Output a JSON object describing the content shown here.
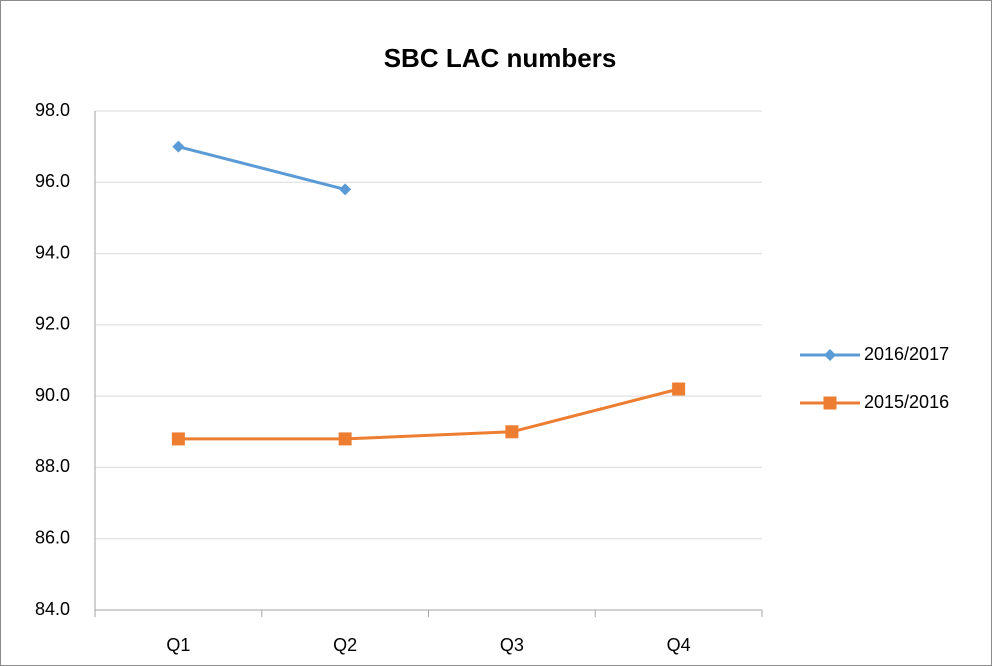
{
  "chart_data": {
    "type": "line",
    "title": "SBC LAC numbers",
    "categories": [
      "Q1",
      "Q2",
      "Q3",
      "Q4"
    ],
    "series": [
      {
        "name": "2016/2017",
        "color": "#5b9bd5",
        "marker": "diamond",
        "values": [
          97.0,
          95.8,
          null,
          null
        ]
      },
      {
        "name": "2015/2016",
        "color": "#ed7d31",
        "marker": "square",
        "values": [
          88.8,
          88.8,
          89.0,
          90.2
        ]
      }
    ],
    "ylim": [
      84,
      98
    ],
    "yticks": [
      {
        "value": 84,
        "label": "84.0"
      },
      {
        "value": 86,
        "label": "86.0"
      },
      {
        "value": 88,
        "label": "88.0"
      },
      {
        "value": 90,
        "label": "90.0"
      },
      {
        "value": 92,
        "label": "92.0"
      },
      {
        "value": 94,
        "label": "94.0"
      },
      {
        "value": 96,
        "label": "96.0"
      },
      {
        "value": 98,
        "label": "98.0"
      }
    ],
    "grid": true,
    "legend": "right"
  }
}
